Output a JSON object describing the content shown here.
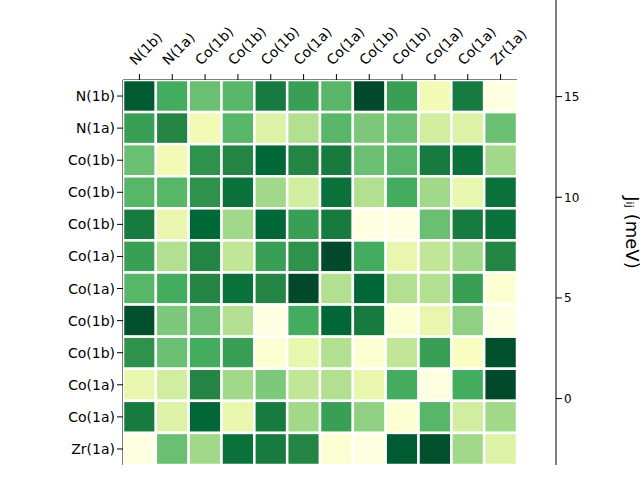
{
  "chart_data": {
    "type": "heatmap",
    "x_labels": [
      "N(1b)",
      "N(1a)",
      "Co(1b)",
      "Co(1b)",
      "Co(1b)",
      "Co(1a)",
      "Co(1a)",
      "Co(1b)",
      "Co(1b)",
      "Co(1a)",
      "Co(1a)",
      "Zr(1a)"
    ],
    "y_labels": [
      "N(1b)",
      "N(1a)",
      "Co(1b)",
      "Co(1b)",
      "Co(1b)",
      "Co(1a)",
      "Co(1a)",
      "Co(1b)",
      "Co(1b)",
      "Co(1a)",
      "Co(1a)",
      "Zr(1a)"
    ],
    "cells": [
      [
        18,
        11,
        9,
        10,
        15,
        12,
        10,
        19.5,
        12,
        0,
        15,
        -3
      ],
      [
        12,
        14,
        0,
        10,
        2,
        5,
        10,
        8,
        9,
        3,
        2,
        9
      ],
      [
        9,
        0,
        13,
        14,
        17,
        14,
        15,
        9,
        10,
        15,
        16,
        6
      ],
      [
        10,
        10,
        13,
        16,
        6,
        3,
        16,
        5,
        11,
        6,
        1,
        16
      ],
      [
        15,
        1,
        17,
        6,
        17,
        12,
        15,
        -3,
        -3,
        9,
        15,
        16
      ],
      [
        12,
        5,
        14,
        4,
        12,
        13,
        19.5,
        11,
        1,
        4,
        6,
        14
      ],
      [
        10,
        11,
        14,
        16,
        14,
        19.5,
        5,
        17,
        5,
        5,
        12,
        -2
      ],
      [
        19,
        8,
        9,
        5,
        -3,
        11,
        17,
        15,
        -2,
        1,
        7,
        -3
      ],
      [
        13,
        9,
        11,
        12,
        -2,
        1,
        5,
        -2,
        4,
        12,
        -1,
        19
      ],
      [
        1,
        3,
        14,
        6,
        8,
        4,
        5,
        1,
        11,
        -3,
        11,
        19.5
      ],
      [
        15,
        2,
        17,
        1,
        15,
        6,
        12,
        7,
        -2,
        10,
        3,
        6
      ],
      [
        -3,
        9,
        6,
        16,
        15,
        14,
        -2,
        -3,
        18,
        19,
        6,
        2
      ]
    ],
    "colorbar_range": [
      -3.3,
      19.8
    ],
    "colorbar_ticks": [
      0,
      5,
      10,
      15
    ],
    "colorbar_label": "Jᵢⱼ (meV)"
  }
}
